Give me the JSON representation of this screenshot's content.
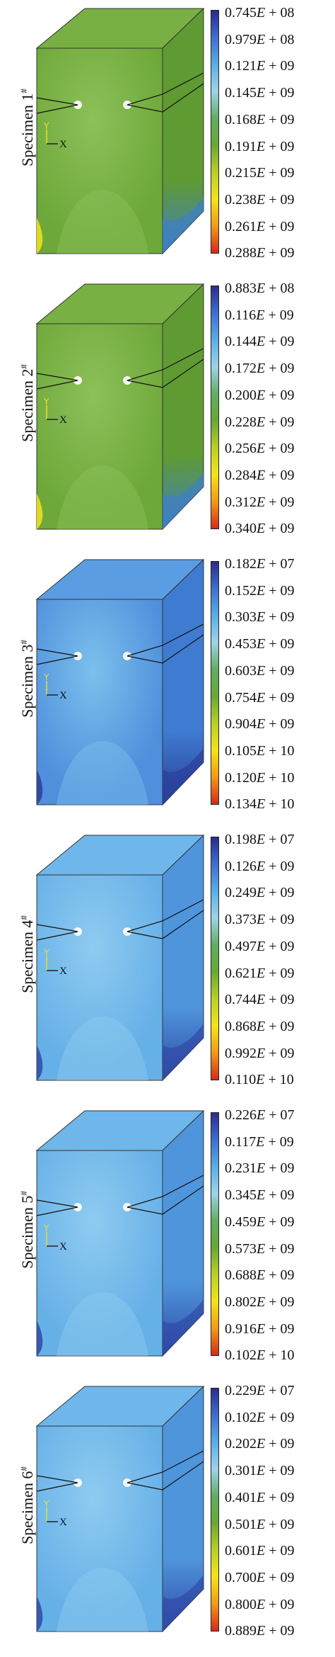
{
  "colors": {
    "scale_stops": [
      "#2b2b8c",
      "#3f6fcf",
      "#5aaee6",
      "#9fd2e8",
      "#5fae62",
      "#6aa835",
      "#b9cf2a",
      "#f4e31a",
      "#f19a1a",
      "#d42b1b"
    ],
    "green_body": "#6ea83a",
    "blue_body": "#5b9ee0",
    "light_blue_body": "#66b0e8"
  },
  "panels": [
    {
      "label": "Specimen 1",
      "superscript": "#",
      "theme": "green",
      "ticks": [
        {
          "mant": "0.745",
          "exp": "+ 08"
        },
        {
          "mant": "0.979",
          "exp": "+ 08"
        },
        {
          "mant": "0.121",
          "exp": "+ 09"
        },
        {
          "mant": "0.145",
          "exp": "+ 09"
        },
        {
          "mant": "0.168",
          "exp": "+ 09"
        },
        {
          "mant": "0.191",
          "exp": "+ 09"
        },
        {
          "mant": "0.215",
          "exp": "+ 09"
        },
        {
          "mant": "0.238",
          "exp": "+ 09"
        },
        {
          "mant": "0.261",
          "exp": "+ 09"
        },
        {
          "mant": "0.288",
          "exp": "+ 09"
        }
      ]
    },
    {
      "label": "Specimen 2",
      "superscript": "#",
      "theme": "green",
      "ticks": [
        {
          "mant": "0.883",
          "exp": "+ 08"
        },
        {
          "mant": "0.116",
          "exp": "+ 09"
        },
        {
          "mant": "0.144",
          "exp": "+ 09"
        },
        {
          "mant": "0.172",
          "exp": "+ 09"
        },
        {
          "mant": "0.200",
          "exp": "+ 09"
        },
        {
          "mant": "0.228",
          "exp": "+ 09"
        },
        {
          "mant": "0.256",
          "exp": "+ 09"
        },
        {
          "mant": "0.284",
          "exp": "+ 09"
        },
        {
          "mant": "0.312",
          "exp": "+ 09"
        },
        {
          "mant": "0.340",
          "exp": "+ 09"
        }
      ]
    },
    {
      "label": "Specimen 3",
      "superscript": "#",
      "theme": "blue",
      "ticks": [
        {
          "mant": "0.182",
          "exp": "+ 07"
        },
        {
          "mant": "0.152",
          "exp": "+ 09"
        },
        {
          "mant": "0.303",
          "exp": "+ 09"
        },
        {
          "mant": "0.453",
          "exp": "+ 09"
        },
        {
          "mant": "0.603",
          "exp": "+ 09"
        },
        {
          "mant": "0.754",
          "exp": "+ 09"
        },
        {
          "mant": "0.904",
          "exp": "+ 09"
        },
        {
          "mant": "0.105",
          "exp": "+ 10"
        },
        {
          "mant": "0.120",
          "exp": "+ 10"
        },
        {
          "mant": "0.134",
          "exp": "+ 10"
        }
      ]
    },
    {
      "label": "Specimen 4",
      "superscript": "#",
      "theme": "lightblue",
      "ticks": [
        {
          "mant": "0.198",
          "exp": "+ 07"
        },
        {
          "mant": "0.126",
          "exp": "+ 09"
        },
        {
          "mant": "0.249",
          "exp": "+ 09"
        },
        {
          "mant": "0.373",
          "exp": "+ 09"
        },
        {
          "mant": "0.497",
          "exp": "+ 09"
        },
        {
          "mant": "0.621",
          "exp": "+ 09"
        },
        {
          "mant": "0.744",
          "exp": "+ 09"
        },
        {
          "mant": "0.868",
          "exp": "+ 09"
        },
        {
          "mant": "0.992",
          "exp": "+ 09"
        },
        {
          "mant": "0.110",
          "exp": "+ 10"
        }
      ]
    },
    {
      "label": "Specimen 5",
      "superscript": "#",
      "theme": "lightblue",
      "ticks": [
        {
          "mant": "0.226",
          "exp": "+ 07"
        },
        {
          "mant": "0.117",
          "exp": "+ 09"
        },
        {
          "mant": "0.231",
          "exp": "+ 09"
        },
        {
          "mant": "0.345",
          "exp": "+ 09"
        },
        {
          "mant": "0.459",
          "exp": "+ 09"
        },
        {
          "mant": "0.573",
          "exp": "+ 09"
        },
        {
          "mant": "0.688",
          "exp": "+ 09"
        },
        {
          "mant": "0.802",
          "exp": "+ 09"
        },
        {
          "mant": "0.916",
          "exp": "+ 09"
        },
        {
          "mant": "0.102",
          "exp": "+ 10"
        }
      ]
    },
    {
      "label": "Specimen 6",
      "superscript": "#",
      "theme": "lightblue",
      "ticks": [
        {
          "mant": "0.229",
          "exp": "+ 07"
        },
        {
          "mant": "0.102",
          "exp": "+ 09"
        },
        {
          "mant": "0.202",
          "exp": "+ 09"
        },
        {
          "mant": "0.301",
          "exp": "+ 09"
        },
        {
          "mant": "0.401",
          "exp": "+ 09"
        },
        {
          "mant": "0.501",
          "exp": "+ 09"
        },
        {
          "mant": "0.601",
          "exp": "+ 09"
        },
        {
          "mant": "0.700",
          "exp": "+ 09"
        },
        {
          "mant": "0.800",
          "exp": "+ 09"
        },
        {
          "mant": "0.889",
          "exp": "+ 09"
        }
      ]
    }
  ],
  "axis_labels": {
    "y": "Y",
    "x": "X"
  }
}
